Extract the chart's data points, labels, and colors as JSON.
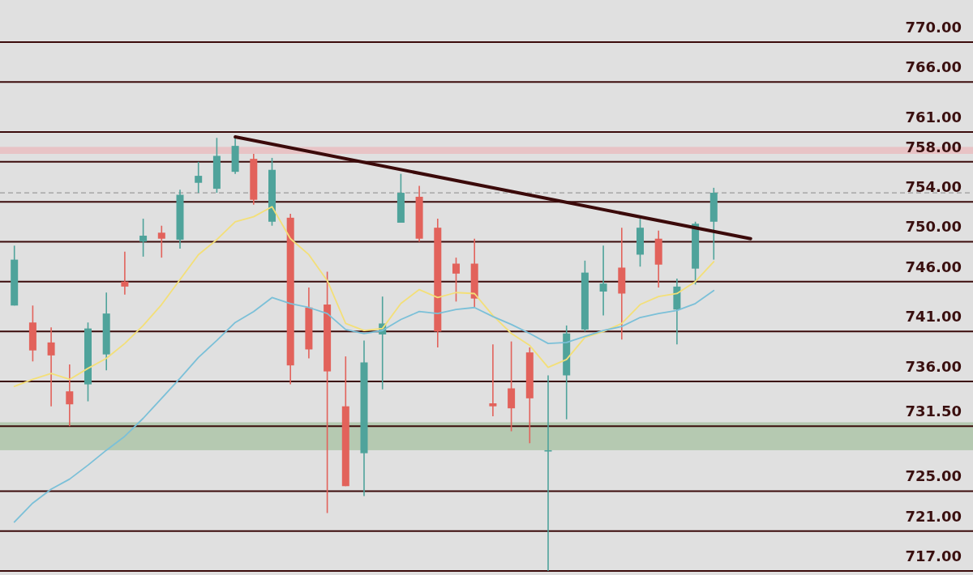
{
  "chart_data": {
    "type": "candlestick",
    "categories": [
      null,
      null,
      null,
      null,
      null,
      null,
      null,
      null,
      null,
      null,
      null,
      null,
      null,
      null,
      null,
      null,
      null,
      null,
      null,
      null,
      null,
      null,
      null,
      null,
      null,
      null,
      null,
      null,
      null,
      null,
      null,
      null,
      null,
      null,
      null,
      null,
      null,
      null,
      null,
      null,
      null
    ],
    "ohlc": [
      [
        743.6,
        749.6,
        743.6,
        748.2
      ],
      [
        741.9,
        743.6,
        738.0,
        739.1
      ],
      [
        739.9,
        741.4,
        733.5,
        738.6
      ],
      [
        735.0,
        737.7,
        731.5,
        733.7
      ],
      [
        735.7,
        741.9,
        734.0,
        741.3
      ],
      [
        738.7,
        744.9,
        737.1,
        742.8
      ],
      [
        746.0,
        749.0,
        744.7,
        745.5
      ],
      [
        750.0,
        752.3,
        748.5,
        750.6
      ],
      [
        750.9,
        751.6,
        748.4,
        750.3
      ],
      [
        750.2,
        755.2,
        749.3,
        754.7
      ],
      [
        755.9,
        758.0,
        754.9,
        756.6
      ],
      [
        755.3,
        760.4,
        754.9,
        758.6
      ],
      [
        757.0,
        760.5,
        756.8,
        759.6
      ],
      [
        758.3,
        758.8,
        753.7,
        754.2
      ],
      [
        752.0,
        758.4,
        751.6,
        757.2
      ],
      [
        752.4,
        752.8,
        735.7,
        737.6
      ],
      [
        743.4,
        745.4,
        738.3,
        739.2
      ],
      [
        743.7,
        747.0,
        722.8,
        737.0
      ],
      [
        733.5,
        738.5,
        725.5,
        725.5
      ],
      [
        728.8,
        740.1,
        724.5,
        737.9
      ],
      [
        740.7,
        744.5,
        735.2,
        741.8
      ],
      [
        751.9,
        756.8,
        751.9,
        754.9
      ],
      [
        754.5,
        755.6,
        750.0,
        750.3
      ],
      [
        751.4,
        752.3,
        739.4,
        741.0
      ],
      [
        747.8,
        748.4,
        744.0,
        746.8
      ],
      [
        747.8,
        750.3,
        743.4,
        744.3
      ],
      [
        733.8,
        739.7,
        732.5,
        733.5
      ],
      [
        735.3,
        740.0,
        731.0,
        733.3
      ],
      [
        738.9,
        739.4,
        729.8,
        734.3
      ],
      [
        729.0,
        736.6,
        717.0,
        729.1
      ],
      [
        736.6,
        741.6,
        732.2,
        740.8
      ],
      [
        741.2,
        748.1,
        741.0,
        746.9
      ],
      [
        745.0,
        749.6,
        742.6,
        745.8
      ],
      [
        747.4,
        751.4,
        740.2,
        744.8
      ],
      [
        748.7,
        752.3,
        747.5,
        751.4
      ],
      [
        750.3,
        751.1,
        745.4,
        747.7
      ],
      [
        743.2,
        746.3,
        739.7,
        745.5
      ],
      [
        747.3,
        752.0,
        745.7,
        751.8
      ],
      [
        752.0,
        755.4,
        748.2,
        754.9
      ],
      null,
      null
    ],
    "colors": [
      "#4fa39b",
      "#e2625b",
      "#e2625b",
      "#e2625b",
      "#4fa39b",
      "#4fa39b",
      "#e2625b",
      "#4fa39b",
      "#e2625b",
      "#4fa39b",
      "#4fa39b",
      "#4fa39b",
      "#4fa39b",
      "#e2625b",
      "#4fa39b",
      "#e2625b",
      "#e2625b",
      "#e2625b",
      "#e2625b",
      "#4fa39b",
      "#4fa39b",
      "#4fa39b",
      "#e2625b",
      "#e2625b",
      "#e2625b",
      "#e2625b",
      "#e2625b",
      "#e2625b",
      "#e2625b",
      "#4fa39b",
      "#4fa39b",
      "#4fa39b",
      "#4fa39b",
      "#e2625b",
      "#4fa39b",
      "#e2625b",
      "#4fa39b",
      "#4fa39b",
      "#4fa39b",
      null,
      null
    ],
    "series": [
      {
        "type": "line",
        "color": "#f3df78",
        "values": [
          735.5,
          736.2,
          736.8,
          736.2,
          737.3,
          738.3,
          739.8,
          741.6,
          743.7,
          746.2,
          748.7,
          750.2,
          752.0,
          752.5,
          753.5,
          750.3,
          748.7,
          746.1,
          741.8,
          741.1,
          741.3,
          743.8,
          745.2,
          744.4,
          744.9,
          744.8,
          742.6,
          740.8,
          739.6,
          737.4,
          738.2,
          740.4,
          741.0,
          741.8,
          743.7,
          744.5,
          744.8,
          746.0,
          748.0,
          null,
          null
        ]
      },
      {
        "type": "line",
        "color": "#7bc0d8",
        "values": [
          721.9,
          723.8,
          725.2,
          726.2,
          727.6,
          729.1,
          730.5,
          732.3,
          734.3,
          736.3,
          738.4,
          740.1,
          741.9,
          743.0,
          744.4,
          743.8,
          743.4,
          742.8,
          741.2,
          740.8,
          741.1,
          742.2,
          743.0,
          742.8,
          743.2,
          743.4,
          742.5,
          741.7,
          740.8,
          739.8,
          739.9,
          740.5,
          741.1,
          741.5,
          742.4,
          742.8,
          743.1,
          743.8,
          745.1,
          null,
          null
        ]
      },
      {
        "type": "line",
        "color": "#3b0a0a",
        "values": [
          null,
          null,
          null,
          null,
          null,
          null,
          null,
          null,
          null,
          null,
          null,
          null,
          760.5,
          null,
          null,
          null,
          null,
          null,
          null,
          null,
          null,
          null,
          null,
          null,
          null,
          null,
          null,
          null,
          null,
          null,
          null,
          null,
          null,
          null,
          null,
          null,
          null,
          null,
          null,
          null,
          750.3
        ]
      }
    ],
    "ylim": [
      717,
      770
    ],
    "tick_labels": false,
    "bands": [
      {
        "axis": "y",
        "from": 758.8,
        "to": 759.5,
        "color": "#e8c3c5"
      },
      {
        "axis": "y",
        "from": 729.1,
        "to": 731.9,
        "color": "#b5c9b1"
      }
    ],
    "ref_lines": [
      {
        "axis": "y",
        "value": 770,
        "label": "770.00"
      },
      {
        "axis": "y",
        "value": 766,
        "label": "766.00"
      },
      {
        "axis": "y",
        "value": 761,
        "label": "761.00"
      },
      {
        "axis": "y",
        "value": 758,
        "label": "758.00"
      },
      {
        "axis": "y",
        "value": 754,
        "label": "754.00"
      },
      {
        "axis": "y",
        "value": 750,
        "label": "750.00"
      },
      {
        "axis": "y",
        "value": 746,
        "label": "746.00"
      },
      {
        "axis": "y",
        "value": 741,
        "label": "741.00"
      },
      {
        "axis": "y",
        "value": 736,
        "label": "736.00"
      },
      {
        "axis": "y",
        "value": 731.5,
        "label": "731.50"
      },
      {
        "axis": "y",
        "value": 725,
        "label": "725.00"
      },
      {
        "axis": "y",
        "value": 721,
        "label": "721.00"
      },
      {
        "axis": "y",
        "value": 717,
        "label": "717.00"
      },
      {
        "axis": "y",
        "value": 754.9,
        "color": "#9a9a9a",
        "line_style": "dashed"
      }
    ]
  }
}
